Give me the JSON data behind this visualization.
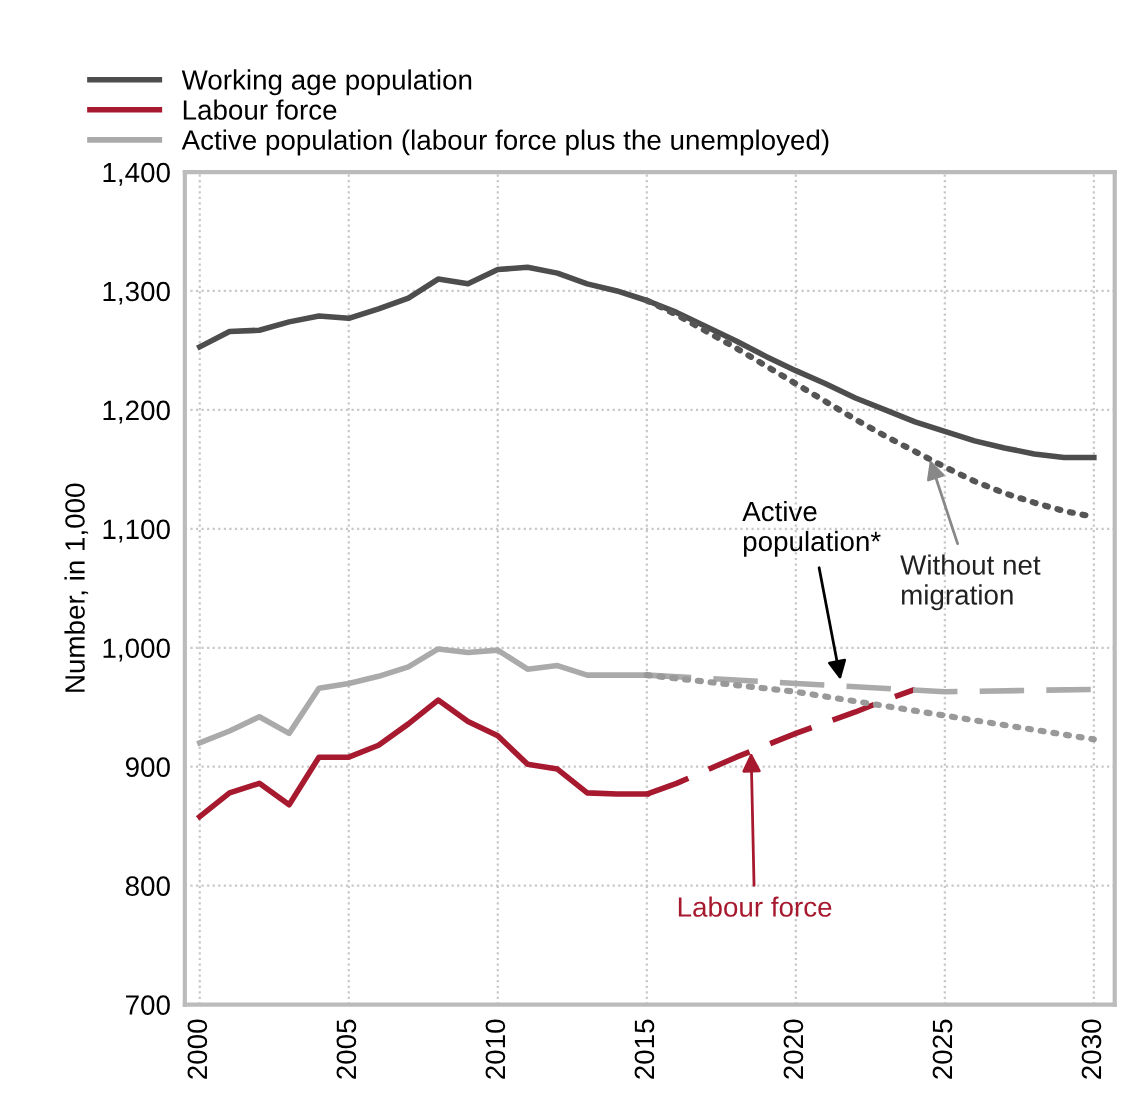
{
  "chart_data": {
    "type": "line",
    "ylabel": "Number, in 1,000",
    "xlim": [
      1999.5,
      2030.7
    ],
    "ylim": [
      700,
      1400
    ],
    "xticks": [
      2000,
      2005,
      2010,
      2015,
      2020,
      2025,
      2030
    ],
    "yticks": [
      {
        "value": 700,
        "label": "700"
      },
      {
        "value": 800,
        "label": "800"
      },
      {
        "value": 900,
        "label": "900"
      },
      {
        "value": 1000,
        "label": "1,000"
      },
      {
        "value": 1100,
        "label": "1,100"
      },
      {
        "value": 1200,
        "label": "1,200"
      },
      {
        "value": 1300,
        "label": "1,300"
      },
      {
        "value": 1400,
        "label": "1,400"
      }
    ],
    "grid": true,
    "legend": "top",
    "marker": "none",
    "series": [
      {
        "name": "Working age population",
        "color": "#4d4d4d",
        "line_style": "solid",
        "x": [
          2000,
          2001,
          2002,
          2003,
          2004,
          2005,
          2006,
          2007,
          2008,
          2009,
          2010,
          2011,
          2012,
          2013,
          2014,
          2015,
          2016,
          2017,
          2018,
          2019,
          2020,
          2021,
          2022,
          2023,
          2024,
          2025,
          2026,
          2027,
          2028,
          2029,
          2030
        ],
        "values": [
          1253,
          1266,
          1267,
          1274,
          1279,
          1277,
          1285,
          1294,
          1310,
          1306,
          1318,
          1320,
          1315,
          1306,
          1300,
          1292,
          1282,
          1270,
          1258,
          1245,
          1233,
          1222,
          1210,
          1200,
          1190,
          1182,
          1174,
          1168,
          1163,
          1160,
          1160
        ]
      },
      {
        "color": "#555555",
        "line_style": "dotted",
        "x": [
          2015,
          2016,
          2017,
          2018,
          2019,
          2020,
          2021,
          2022,
          2023,
          2024,
          2025,
          2026,
          2027,
          2028,
          2029,
          2030
        ],
        "values": [
          1292,
          1280,
          1266,
          1252,
          1237,
          1222,
          1207,
          1192,
          1178,
          1165,
          1152,
          1140,
          1130,
          1122,
          1115,
          1110
        ]
      },
      {
        "name": "Labour force",
        "color": "#a6192e",
        "line_style": "solid",
        "x": [
          2000,
          2001,
          2002,
          2003,
          2004,
          2005,
          2006,
          2007,
          2008,
          2009,
          2010,
          2011,
          2012,
          2013,
          2014,
          2015
        ],
        "values": [
          858,
          878,
          886,
          868,
          908,
          908,
          918,
          936,
          956,
          938,
          926,
          902,
          898,
          878,
          877,
          877
        ]
      },
      {
        "color": "#a6192e",
        "line_style": "dashed",
        "x": [
          2015,
          2016,
          2017,
          2018,
          2019,
          2020,
          2021,
          2022,
          2023,
          2024
        ],
        "values": [
          877,
          886,
          897,
          908,
          918,
          928,
          937,
          946,
          956,
          965
        ]
      },
      {
        "name": "Active population (labour force plus the unemployed)",
        "color": "#aaaaaa",
        "line_style": "solid",
        "x": [
          2000,
          2001,
          2002,
          2003,
          2004,
          2005,
          2006,
          2007,
          2008,
          2009,
          2010,
          2011,
          2012,
          2013,
          2014,
          2015
        ],
        "values": [
          920,
          930,
          942,
          928,
          966,
          970,
          976,
          984,
          999,
          996,
          998,
          982,
          985,
          977,
          977,
          977
        ]
      },
      {
        "color": "#aaaaaa",
        "line_style": "dashed",
        "x": [
          2015,
          2020,
          2025,
          2030
        ],
        "values": [
          977,
          970,
          963,
          965
        ]
      },
      {
        "color": "#999999",
        "line_style": "dotted",
        "x": [
          2015,
          2020,
          2025,
          2030
        ],
        "values": [
          977,
          963,
          943,
          923
        ]
      }
    ],
    "annotations": [
      {
        "text": "Active\npopulation*",
        "x": 2021.5,
        "y": 973
      },
      {
        "text": "Without net\nmigration",
        "x": 2024.5,
        "y": 1158
      },
      {
        "text": "Labour force",
        "x": 2018.5,
        "y": 912
      }
    ]
  }
}
